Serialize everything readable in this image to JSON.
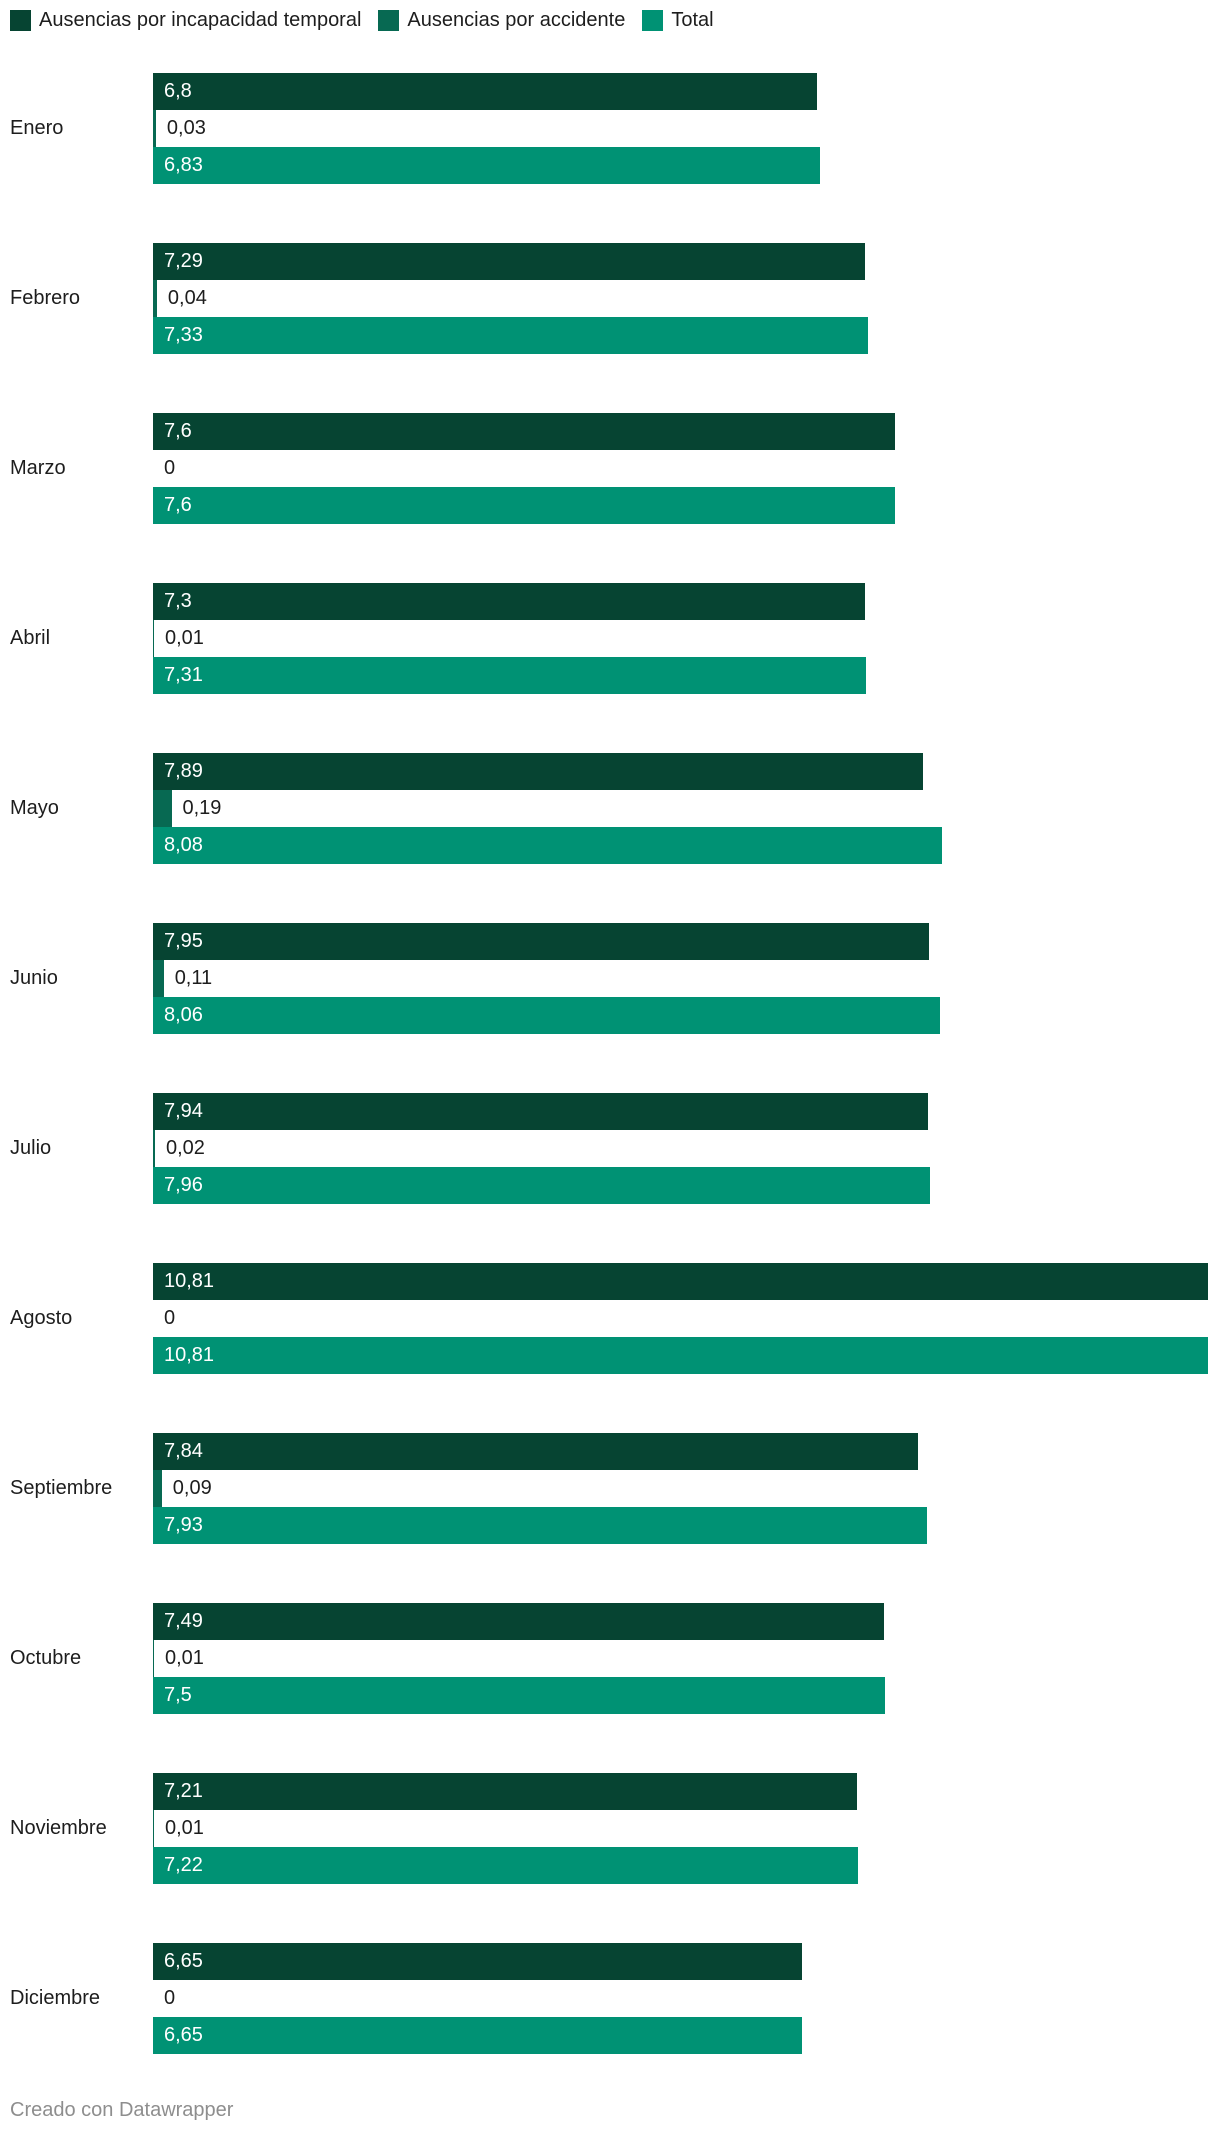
{
  "legend": {
    "items": [
      {
        "label": "Ausencias por incapacidad temporal",
        "color": "#064432"
      },
      {
        "label": "Ausencias por accidente",
        "color": "#076952"
      },
      {
        "label": "Total",
        "color": "#009274"
      }
    ]
  },
  "footer": {
    "credit": "Creado con Datawrapper"
  },
  "chart_data": {
    "type": "bar",
    "orientation": "horizontal",
    "title": "",
    "xlabel": "",
    "ylabel": "",
    "xlim": [
      0,
      10.81
    ],
    "grid": false,
    "legend_position": "top",
    "decimal_separator": ",",
    "categories": [
      "Enero",
      "Febrero",
      "Marzo",
      "Abril",
      "Mayo",
      "Junio",
      "Julio",
      "Agosto",
      "Septiembre",
      "Octubre",
      "Noviembre",
      "Diciembre"
    ],
    "series": [
      {
        "name": "Ausencias por incapacidad temporal",
        "color": "#064432",
        "values": [
          6.8,
          7.29,
          7.6,
          7.3,
          7.89,
          7.95,
          7.94,
          10.81,
          7.84,
          7.49,
          7.21,
          6.65
        ],
        "labels": [
          "6,8",
          "7,29",
          "7,6",
          "7,3",
          "7,89",
          "7,95",
          "7,94",
          "10,81",
          "7,84",
          "7,49",
          "7,21",
          "6,65"
        ]
      },
      {
        "name": "Ausencias por accidente",
        "color": "#076952",
        "values": [
          0.03,
          0.04,
          0,
          0.01,
          0.19,
          0.11,
          0.02,
          0,
          0.09,
          0.01,
          0.01,
          0
        ],
        "labels": [
          "0,03",
          "0,04",
          "0",
          "0,01",
          "0,19",
          "0,11",
          "0,02",
          "0",
          "0,09",
          "0,01",
          "0,01",
          "0"
        ]
      },
      {
        "name": "Total",
        "color": "#009274",
        "values": [
          6.83,
          7.33,
          7.6,
          7.31,
          8.08,
          8.06,
          7.96,
          10.81,
          7.93,
          7.5,
          7.22,
          6.65
        ],
        "labels": [
          "6,83",
          "7,33",
          "7,6",
          "7,31",
          "8,08",
          "8,06",
          "7,96",
          "10,81",
          "7,93",
          "7,5",
          "7,22",
          "6,65"
        ]
      }
    ]
  }
}
